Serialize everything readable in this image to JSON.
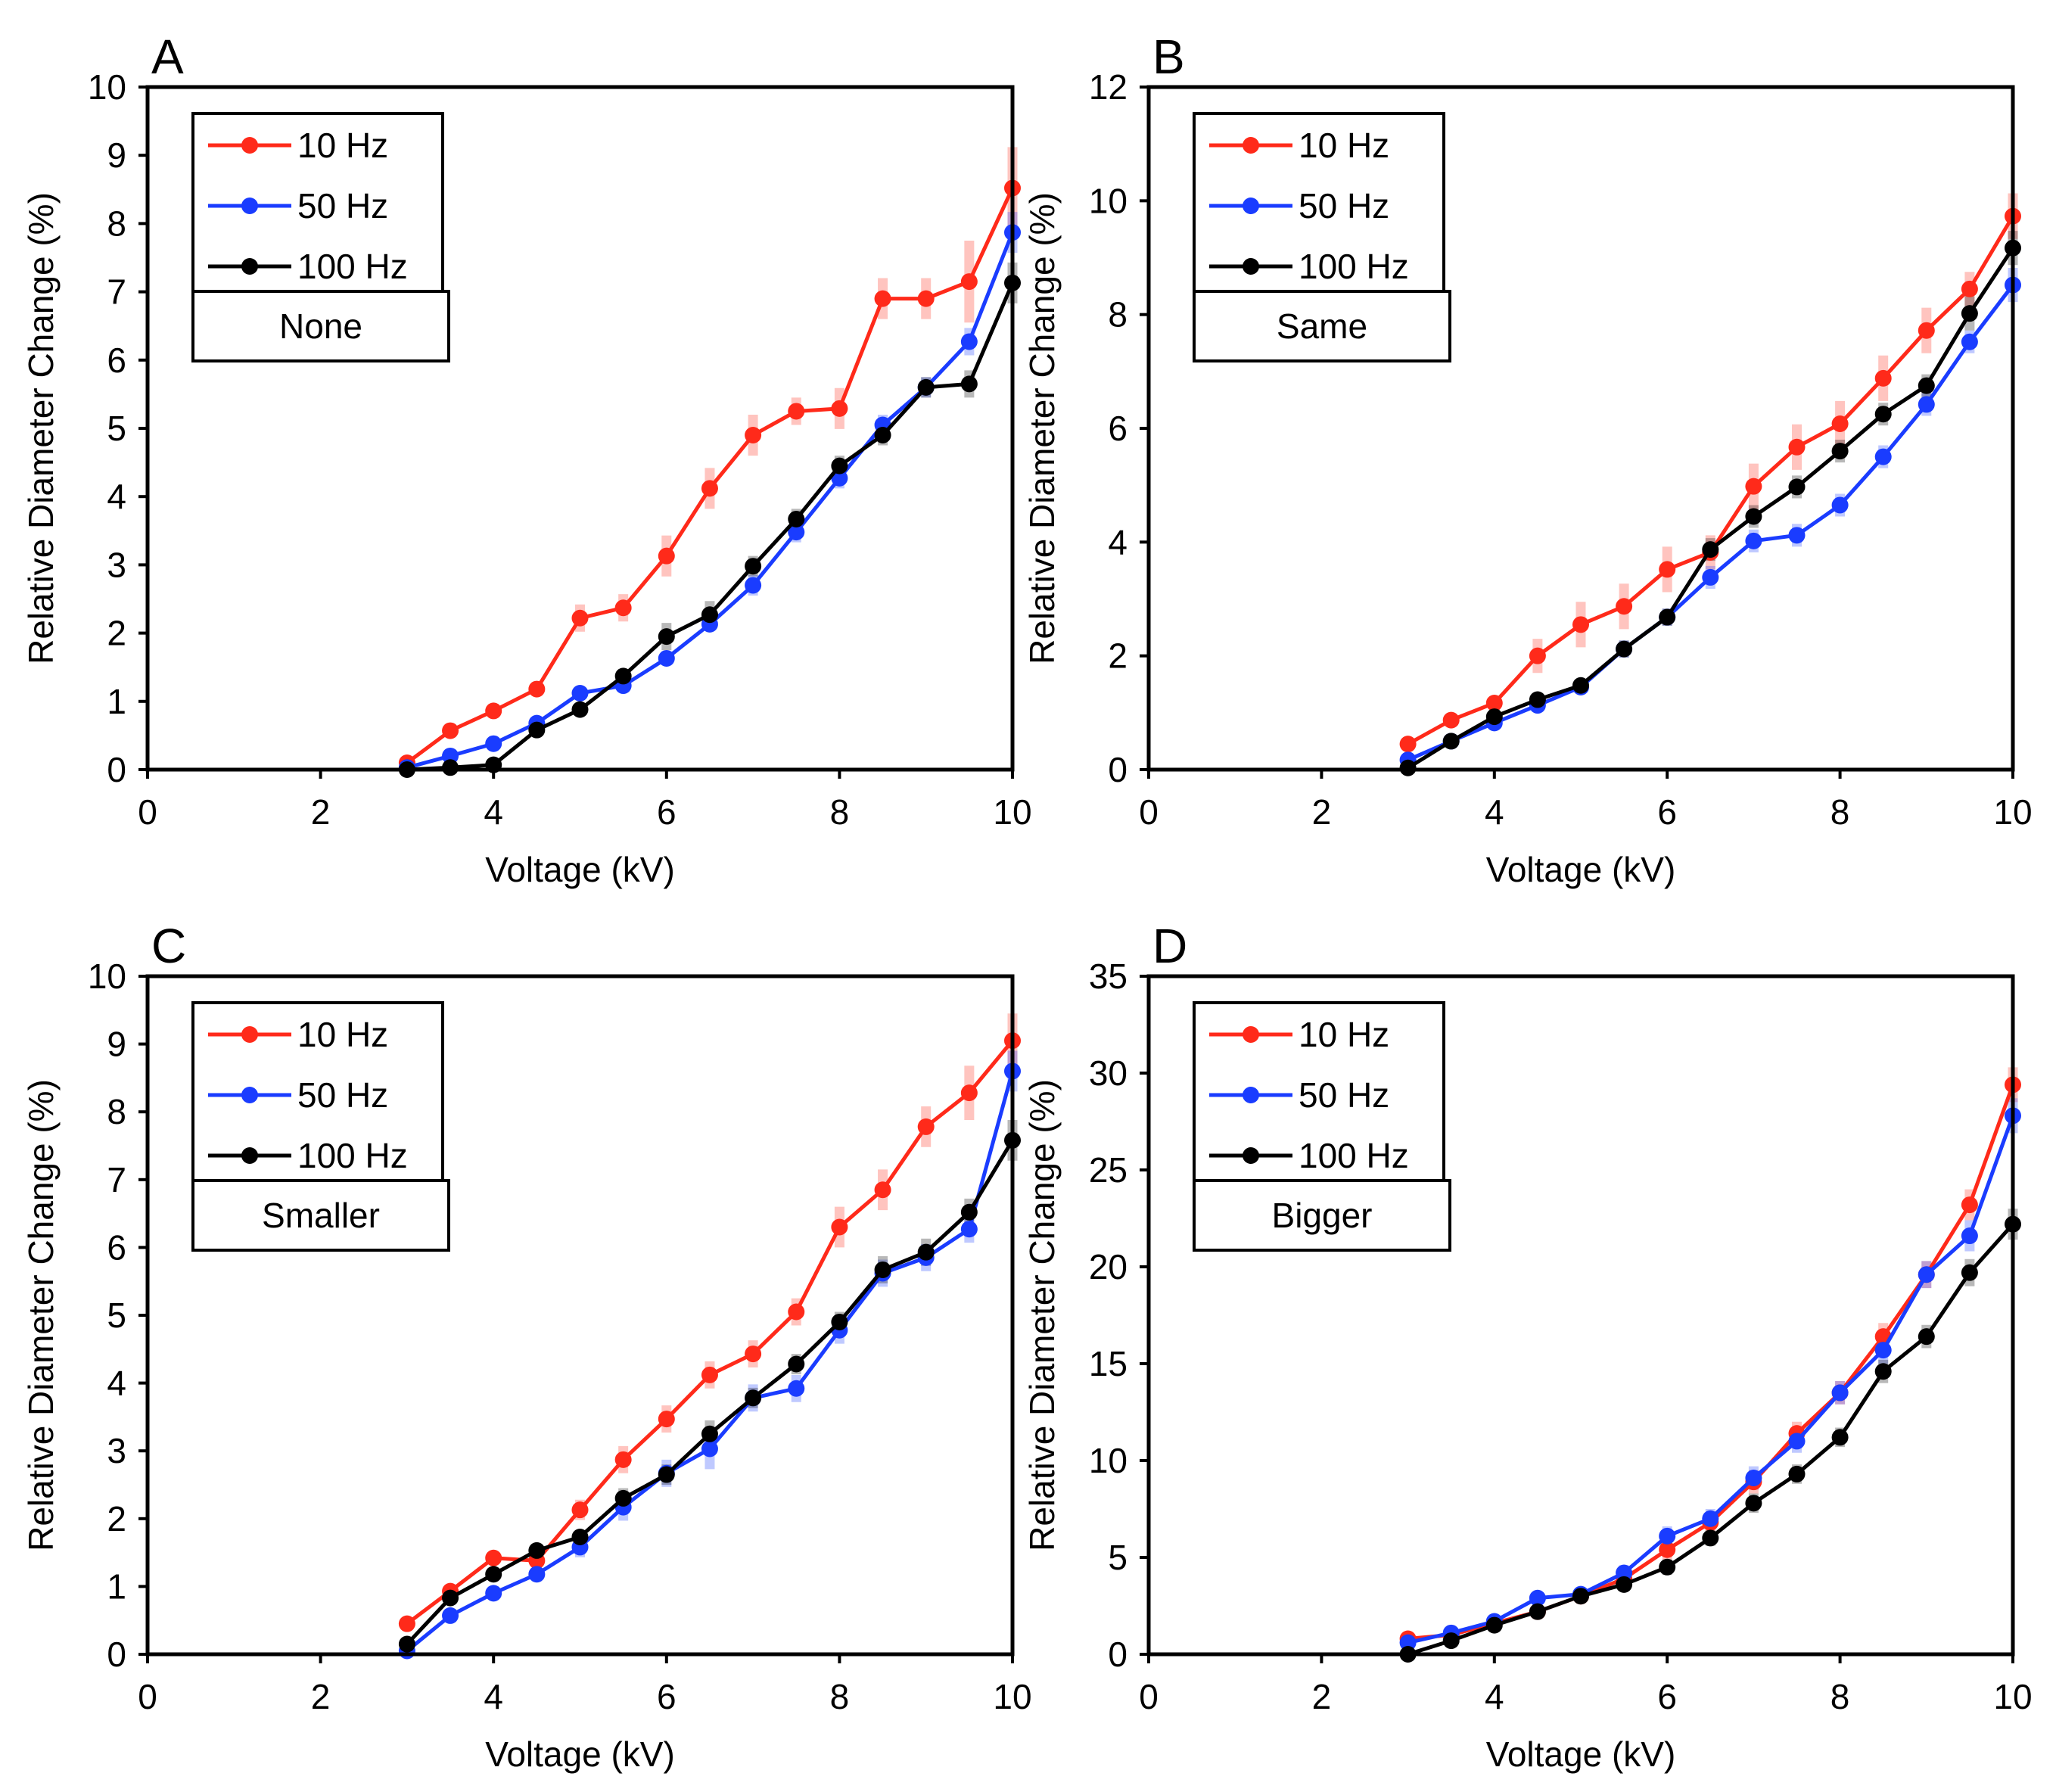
{
  "figure": {
    "x_label": "Voltage (kV)",
    "y_label": "Relative Diameter Change (%)"
  },
  "colors": {
    "10 Hz": "#ff2a1a",
    "50 Hz": "#1a3cff",
    "100 Hz": "#000000"
  },
  "chart_data": [
    {
      "type": "line",
      "panel_label": "A",
      "condition": "None",
      "xlabel": "Voltage (kV)",
      "ylabel": "Relative Diameter Change (%)",
      "xlim": [
        0,
        10
      ],
      "ylim": [
        0,
        10
      ],
      "xticks": [
        0,
        2,
        4,
        6,
        8,
        10
      ],
      "yticks": [
        0,
        1,
        2,
        3,
        4,
        5,
        6,
        7,
        8,
        9,
        10
      ],
      "legend": [
        "10 Hz",
        "50 Hz",
        "100 Hz"
      ],
      "x": [
        3,
        3.5,
        4,
        4.5,
        5,
        5.5,
        6,
        6.5,
        7,
        7.5,
        8,
        8.5,
        9,
        9.5,
        10
      ],
      "series": [
        {
          "name": "10 Hz",
          "values": [
            0.1,
            0.57,
            0.86,
            1.18,
            2.22,
            2.37,
            3.13,
            4.12,
            4.9,
            5.25,
            5.29,
            6.9,
            6.9,
            7.15,
            8.52
          ],
          "err": [
            0.05,
            0.1,
            0.1,
            0.1,
            0.2,
            0.2,
            0.3,
            0.3,
            0.3,
            0.2,
            0.3,
            0.3,
            0.3,
            0.6,
            0.6
          ]
        },
        {
          "name": "50 Hz",
          "values": [
            0.03,
            0.2,
            0.38,
            0.68,
            1.12,
            1.23,
            1.63,
            2.13,
            2.7,
            3.48,
            4.27,
            5.05,
            5.6,
            6.27,
            7.87
          ],
          "err": [
            0.03,
            0.05,
            0.05,
            0.08,
            0.1,
            0.1,
            0.1,
            0.1,
            0.15,
            0.15,
            0.15,
            0.15,
            0.15,
            0.2,
            0.3
          ]
        },
        {
          "name": "100 Hz",
          "values": [
            0,
            0.03,
            0.07,
            0.58,
            0.88,
            1.37,
            1.95,
            2.27,
            2.98,
            3.67,
            4.45,
            4.9,
            5.6,
            5.65,
            7.13
          ],
          "err": [
            0.02,
            0.03,
            0.05,
            0.08,
            0.1,
            0.1,
            0.2,
            0.2,
            0.15,
            0.15,
            0.15,
            0.15,
            0.15,
            0.2,
            0.3
          ]
        }
      ]
    },
    {
      "type": "line",
      "panel_label": "B",
      "condition": "Same",
      "xlabel": "Voltage (kV)",
      "ylabel": "Relative Diameter Change (%)",
      "xlim": [
        0,
        10
      ],
      "ylim": [
        0,
        12
      ],
      "xticks": [
        0,
        2,
        4,
        6,
        8,
        10
      ],
      "yticks": [
        0,
        2,
        4,
        6,
        8,
        10,
        12
      ],
      "legend": [
        "10 Hz",
        "50 Hz",
        "100 Hz"
      ],
      "x": [
        3,
        3.5,
        4,
        4.5,
        5,
        5.5,
        6,
        6.5,
        7,
        7.5,
        8,
        8.5,
        9,
        9.5,
        10
      ],
      "series": [
        {
          "name": "10 Hz",
          "values": [
            0.45,
            0.87,
            1.17,
            2.0,
            2.55,
            2.87,
            3.52,
            3.82,
            4.98,
            5.67,
            6.08,
            6.88,
            7.72,
            8.45,
            9.73
          ],
          "err": [
            0.1,
            0.1,
            0.1,
            0.3,
            0.4,
            0.4,
            0.4,
            0.3,
            0.4,
            0.4,
            0.4,
            0.4,
            0.4,
            0.3,
            0.4
          ]
        },
        {
          "name": "50 Hz",
          "values": [
            0.17,
            0.5,
            0.82,
            1.13,
            1.45,
            2.12,
            2.68,
            3.38,
            4.02,
            4.12,
            4.65,
            5.5,
            6.42,
            7.52,
            8.52
          ],
          "err": [
            0.05,
            0.1,
            0.1,
            0.1,
            0.1,
            0.15,
            0.15,
            0.2,
            0.2,
            0.2,
            0.2,
            0.2,
            0.2,
            0.2,
            0.3
          ]
        },
        {
          "name": "100 Hz",
          "values": [
            0.03,
            0.5,
            0.93,
            1.23,
            1.48,
            2.12,
            2.68,
            3.87,
            4.45,
            4.97,
            5.6,
            6.25,
            6.75,
            8.02,
            9.17
          ],
          "err": [
            0.03,
            0.1,
            0.1,
            0.1,
            0.1,
            0.15,
            0.15,
            0.2,
            0.2,
            0.2,
            0.2,
            0.2,
            0.2,
            0.3,
            0.3
          ]
        }
      ]
    },
    {
      "type": "line",
      "panel_label": "C",
      "condition": "Smaller",
      "xlabel": "Voltage (kV)",
      "ylabel": "Relative Diameter Change (%)",
      "xlim": [
        0,
        10
      ],
      "ylim": [
        0,
        10
      ],
      "xticks": [
        0,
        2,
        4,
        6,
        8,
        10
      ],
      "yticks": [
        0,
        1,
        2,
        3,
        4,
        5,
        6,
        7,
        8,
        9,
        10
      ],
      "legend": [
        "10 Hz",
        "50 Hz",
        "100 Hz"
      ],
      "x": [
        3,
        3.5,
        4,
        4.5,
        5,
        5.5,
        6,
        6.5,
        7,
        7.5,
        8,
        8.5,
        9,
        9.5,
        10
      ],
      "series": [
        {
          "name": "10 Hz",
          "values": [
            0.45,
            0.93,
            1.42,
            1.38,
            2.13,
            2.87,
            3.47,
            4.12,
            4.43,
            5.05,
            6.3,
            6.85,
            7.78,
            8.28,
            9.05
          ],
          "err": [
            0.1,
            0.1,
            0.1,
            0.1,
            0.15,
            0.2,
            0.2,
            0.2,
            0.2,
            0.2,
            0.3,
            0.3,
            0.3,
            0.4,
            0.4
          ]
        },
        {
          "name": "50 Hz",
          "values": [
            0.05,
            0.57,
            0.9,
            1.18,
            1.58,
            2.17,
            2.67,
            3.03,
            3.78,
            3.92,
            4.78,
            5.62,
            5.85,
            6.27,
            8.6
          ],
          "err": [
            0.05,
            0.1,
            0.1,
            0.1,
            0.15,
            0.2,
            0.2,
            0.3,
            0.2,
            0.2,
            0.2,
            0.2,
            0.2,
            0.2,
            0.3
          ]
        },
        {
          "name": "100 Hz",
          "values": [
            0.15,
            0.83,
            1.18,
            1.53,
            1.73,
            2.3,
            2.65,
            3.25,
            3.78,
            4.28,
            4.9,
            5.67,
            5.93,
            6.52,
            7.58
          ],
          "err": [
            0.05,
            0.1,
            0.1,
            0.1,
            0.1,
            0.15,
            0.15,
            0.2,
            0.15,
            0.15,
            0.15,
            0.2,
            0.2,
            0.2,
            0.3
          ]
        }
      ]
    },
    {
      "type": "line",
      "panel_label": "D",
      "condition": "Bigger",
      "xlabel": "Voltage (kV)",
      "ylabel": "Relative Diameter Change (%)",
      "xlim": [
        0,
        10
      ],
      "ylim": [
        0,
        35
      ],
      "xticks": [
        0,
        2,
        4,
        6,
        8,
        10
      ],
      "yticks": [
        0,
        5,
        10,
        15,
        20,
        25,
        30,
        35
      ],
      "legend": [
        "10 Hz",
        "50 Hz",
        "100 Hz"
      ],
      "x": [
        3,
        3.5,
        4,
        4.5,
        5,
        5.5,
        6,
        6.5,
        7,
        7.5,
        8,
        8.5,
        9,
        9.5,
        10
      ],
      "series": [
        {
          "name": "10 Hz",
          "values": [
            0.8,
            1.0,
            1.6,
            2.2,
            3.0,
            3.9,
            5.4,
            6.8,
            8.9,
            11.4,
            13.5,
            16.4,
            19.6,
            23.2,
            29.4
          ],
          "err": [
            0.2,
            0.2,
            0.2,
            0.3,
            0.3,
            0.4,
            0.5,
            0.5,
            0.6,
            0.6,
            0.6,
            0.7,
            0.7,
            0.8,
            0.9
          ]
        },
        {
          "name": "50 Hz",
          "values": [
            0.6,
            1.1,
            1.7,
            2.9,
            3.1,
            4.2,
            6.1,
            7.0,
            9.1,
            11.0,
            13.5,
            15.7,
            19.6,
            21.6,
            27.8
          ],
          "err": [
            0.2,
            0.2,
            0.2,
            0.3,
            0.3,
            0.4,
            0.5,
            0.5,
            0.6,
            0.6,
            0.6,
            0.7,
            0.7,
            0.8,
            0.9
          ]
        },
        {
          "name": "100 Hz",
          "values": [
            0,
            0.7,
            1.5,
            2.2,
            3.0,
            3.6,
            4.5,
            6.0,
            7.8,
            9.3,
            11.2,
            14.6,
            16.4,
            19.7,
            22.2
          ],
          "err": [
            0.1,
            0.2,
            0.2,
            0.2,
            0.3,
            0.3,
            0.4,
            0.4,
            0.5,
            0.5,
            0.5,
            0.6,
            0.6,
            0.7,
            0.8
          ]
        }
      ]
    }
  ]
}
